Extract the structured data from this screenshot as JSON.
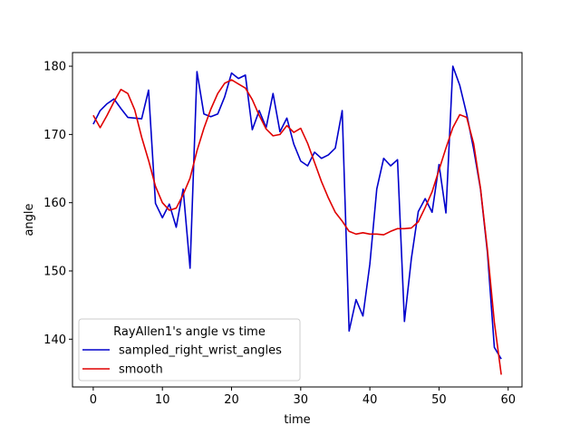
{
  "chart_data": {
    "type": "line",
    "title": "",
    "xlabel": "time",
    "ylabel": "angle",
    "xlim": [
      -3,
      62
    ],
    "ylim": [
      133,
      182
    ],
    "xticks": [
      0,
      10,
      20,
      30,
      40,
      50,
      60
    ],
    "yticks": [
      140,
      150,
      160,
      170,
      180
    ],
    "grid": false,
    "legend": {
      "title": "RayAllen1's angle vs time",
      "placement": "lower-left"
    },
    "series": [
      {
        "name": "sampled_right_wrist_angles",
        "color": "#0000cc",
        "x": [
          0,
          1,
          2,
          3,
          4,
          5,
          6,
          7,
          8,
          9,
          10,
          11,
          12,
          13,
          14,
          15,
          16,
          17,
          18,
          19,
          20,
          21,
          22,
          23,
          24,
          25,
          26,
          27,
          28,
          29,
          30,
          31,
          32,
          33,
          34,
          35,
          36,
          37,
          38,
          39,
          40,
          41,
          42,
          43,
          44,
          45,
          46,
          47,
          48,
          49,
          50,
          51,
          52,
          53,
          54,
          55,
          56,
          57,
          58,
          59
        ],
        "values": [
          171.5,
          173.5,
          174.5,
          175.2,
          173.8,
          172.5,
          172.4,
          172.3,
          176.5,
          159.9,
          157.8,
          159.8,
          156.4,
          162,
          150.4,
          179.2,
          173,
          172.6,
          173,
          175.5,
          179,
          178.2,
          178.7,
          170.7,
          173.5,
          171,
          176,
          170.4,
          172.4,
          168.6,
          166.1,
          165.4,
          167.4,
          166.5,
          167,
          168,
          173.5,
          141.2,
          145.8,
          143.4,
          151,
          162,
          166.5,
          165.4,
          166.3,
          142.6,
          151.8,
          158.7,
          160.6,
          158.6,
          165.6,
          158.5,
          180,
          177.2,
          173,
          167.9,
          162,
          152.7,
          138.8,
          137.1
        ]
      },
      {
        "name": "smooth",
        "color": "#e00000",
        "x": [
          0,
          1,
          2,
          3,
          4,
          5,
          6,
          7,
          8,
          9,
          10,
          11,
          12,
          13,
          14,
          15,
          16,
          17,
          18,
          19,
          20,
          21,
          22,
          23,
          24,
          25,
          26,
          27,
          28,
          29,
          30,
          31,
          32,
          33,
          34,
          35,
          36,
          37,
          38,
          39,
          40,
          41,
          42,
          43,
          44,
          45,
          46,
          47,
          48,
          49,
          50,
          51,
          52,
          53,
          54,
          55,
          56,
          57,
          58,
          59
        ],
        "values": [
          172.8,
          171,
          172.8,
          174.8,
          176.6,
          176,
          173.6,
          169.6,
          166.2,
          162.4,
          160,
          158.9,
          159.2,
          161.2,
          163.6,
          167.6,
          170.9,
          173.7,
          176,
          177.5,
          178,
          177.4,
          176.8,
          175.1,
          172.8,
          170.8,
          169.8,
          170,
          171.3,
          170.3,
          170.9,
          168.7,
          165.9,
          163.1,
          160.7,
          158.6,
          157.3,
          155.8,
          155.4,
          155.6,
          155.4,
          155.4,
          155.3,
          155.8,
          156.2,
          156.2,
          156.3,
          157.2,
          159.3,
          161.6,
          164.8,
          168,
          171,
          172.9,
          172.5,
          168.7,
          162.1,
          153.1,
          142.5,
          134.8
        ]
      }
    ]
  }
}
